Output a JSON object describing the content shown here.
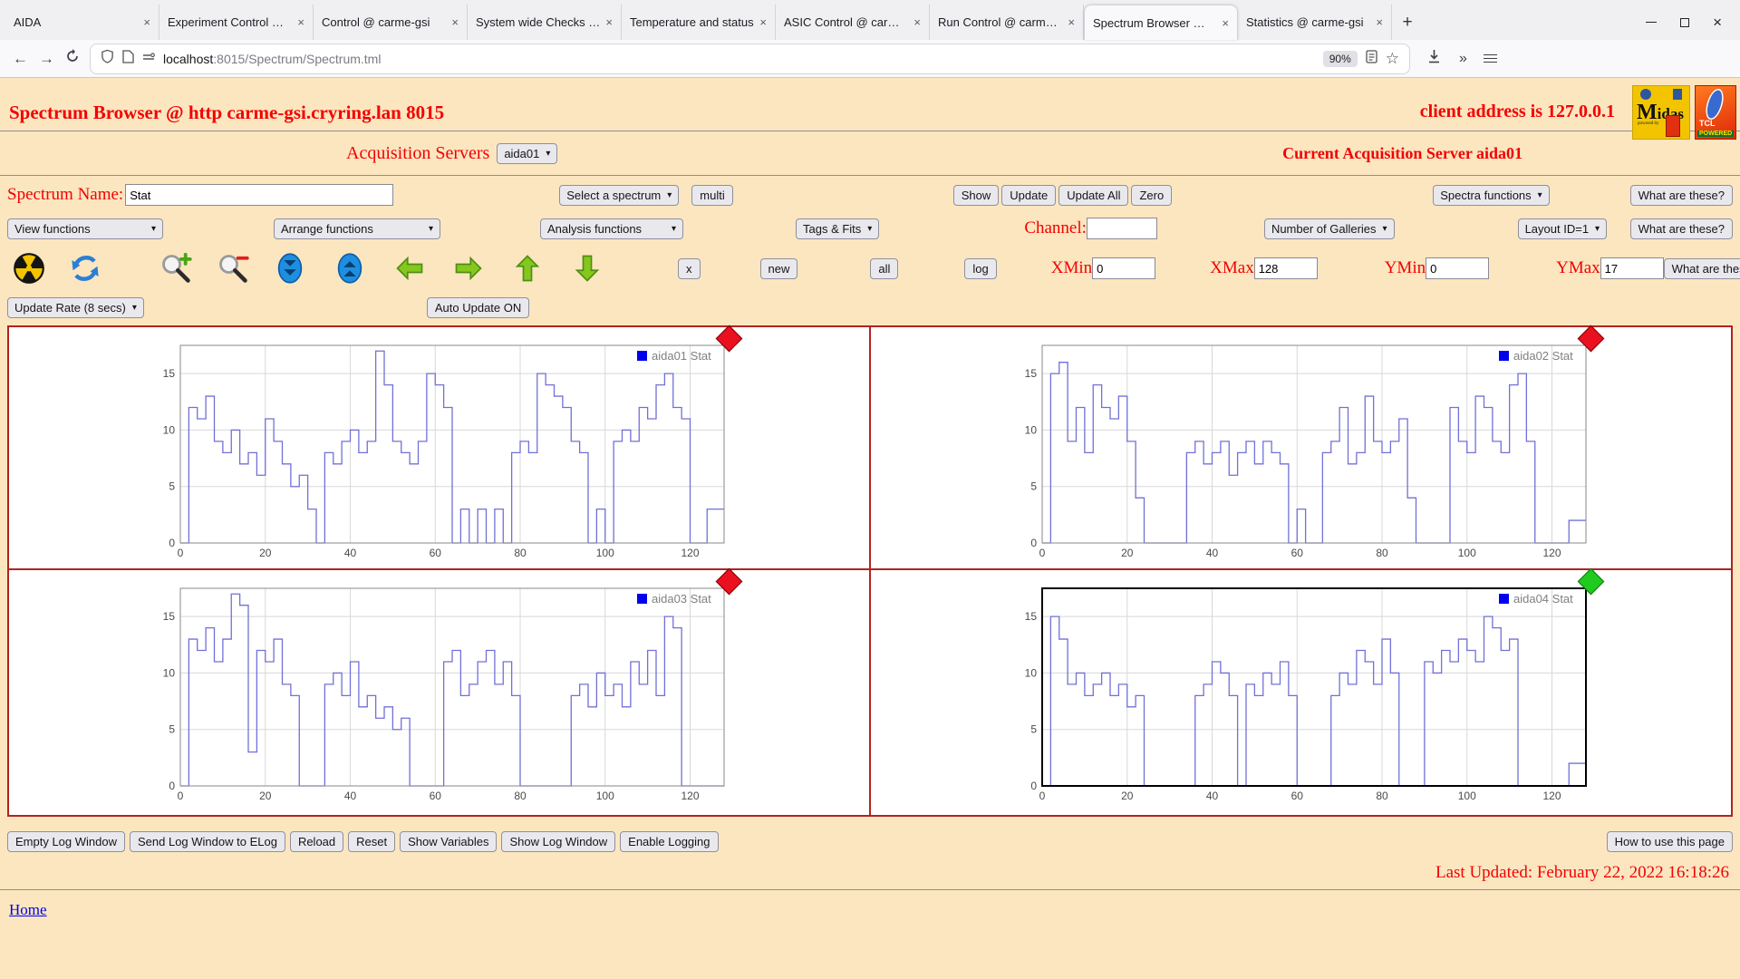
{
  "browser": {
    "tabs": [
      {
        "label": "AIDA",
        "active": false
      },
      {
        "label": "Experiment Control @ ca",
        "active": false
      },
      {
        "label": "Control @ carme-gsi",
        "active": false
      },
      {
        "label": "System wide Checks @ c",
        "active": false
      },
      {
        "label": "Temperature and status",
        "active": false
      },
      {
        "label": "ASIC Control @ carme-g",
        "active": false
      },
      {
        "label": "Run Control @ carme-gs",
        "active": false
      },
      {
        "label": "Spectrum Browser @ ca",
        "active": true
      },
      {
        "label": "Statistics @ carme-gsi",
        "active": false
      }
    ],
    "new_tab": "+",
    "close_glyph": "×",
    "url_host": "localhost",
    "url_path": ":8015/Spectrum/Spectrum.tml",
    "zoom_badge": "90%",
    "back": "←",
    "forward": "→",
    "star": "☆",
    "chevrons": "»"
  },
  "header": {
    "title": "Spectrum Browser @ http carme-gsi.cryring.lan 8015",
    "client": "client address is 127.0.0.1",
    "midas_logo_text": "Midas",
    "midas_powered": "powered by",
    "tcl_text": "TCL",
    "tcl_powered": "POWERED"
  },
  "acquisition": {
    "label": "Acquisition Servers",
    "selected": "aida01",
    "current": "Current Acquisition Server aida01"
  },
  "controls": {
    "spectrum_name_label": "Spectrum Name:",
    "spectrum_name_value": "Stat",
    "select_spectrum": "Select a spectrum",
    "multi": "multi",
    "show": "Show",
    "update": "Update",
    "update_all": "Update All",
    "zero": "Zero",
    "spectra_functions": "Spectra functions",
    "what_are_these": "What are these?",
    "view_functions": "View functions",
    "arrange_functions": "Arrange functions",
    "analysis_functions": "Analysis functions",
    "tags_fits": "Tags & Fits",
    "channel_label": "Channel:",
    "channel_value": "",
    "number_of_galleries": "Number of Galleries",
    "layout_id": "Layout ID=1",
    "x_button": "x",
    "new_button": "new",
    "all_button": "all",
    "log_button": "log",
    "xmin_label": "XMin",
    "xmin_value": "0",
    "xmax_label": "XMax",
    "xmax_value": "128",
    "ymin_label": "YMin",
    "ymin_value": "0",
    "ymax_label": "YMax",
    "ymax_value": "17",
    "update_rate": "Update Rate (8 secs)",
    "auto_update": "Auto Update ON",
    "icons": [
      "radiation-icon",
      "refresh-icon",
      "zoom-in-icon",
      "zoom-out-icon",
      "scroll-down-icon",
      "scroll-up-icon",
      "arrow-left-icon",
      "arrow-right-icon",
      "arrow-up-icon",
      "arrow-down-icon"
    ]
  },
  "footer": {
    "buttons": [
      "Empty Log Window",
      "Send Log Window to ELog",
      "Reload",
      "Reset",
      "Show Variables",
      "Show Log Window",
      "Enable Logging"
    ],
    "how_to": "How to use this page",
    "last_updated": "Last Updated: February 22, 2022 16:18:26",
    "home": "Home"
  },
  "chart_data": {
    "type": "line",
    "style": "step-histogram",
    "xlim": [
      0,
      128
    ],
    "ylim": [
      0,
      17.5
    ],
    "x_ticks": [
      0,
      20,
      40,
      60,
      80,
      100,
      120
    ],
    "y_ticks": [
      0,
      5,
      10,
      15
    ],
    "bin_width": 2,
    "grid": true,
    "legend_position": "top-right",
    "line_color": "#7070d8",
    "legend_square_color": "#0000ee",
    "charts": [
      {
        "legend": "aida01 Stat",
        "marker": "red",
        "selected": false,
        "values": [
          0,
          12,
          11,
          13,
          9,
          8,
          10,
          7,
          8,
          6,
          11,
          9,
          7,
          5,
          6,
          3,
          0,
          8,
          7,
          9,
          10,
          8,
          9,
          17,
          14,
          9,
          8,
          7,
          9,
          15,
          14,
          12,
          0,
          3,
          0,
          3,
          0,
          3,
          0,
          8,
          9,
          8,
          15,
          14,
          13,
          12,
          9,
          8,
          0,
          3,
          0,
          9,
          10,
          9,
          12,
          11,
          14,
          15,
          12,
          11,
          0,
          0,
          3,
          3
        ]
      },
      {
        "legend": "aida02 Stat",
        "marker": "red",
        "selected": false,
        "values": [
          0,
          15,
          16,
          9,
          12,
          8,
          14,
          12,
          11,
          13,
          9,
          4,
          0,
          0,
          0,
          0,
          0,
          8,
          9,
          7,
          8,
          9,
          6,
          8,
          9,
          7,
          9,
          8,
          7,
          0,
          3,
          0,
          0,
          8,
          9,
          12,
          7,
          8,
          13,
          9,
          8,
          9,
          11,
          4,
          0,
          0,
          0,
          0,
          12,
          9,
          8,
          13,
          12,
          9,
          8,
          14,
          15,
          9,
          0,
          0,
          0,
          0,
          2,
          2
        ]
      },
      {
        "legend": "aida03 Stat",
        "marker": "red",
        "selected": false,
        "values": [
          0,
          13,
          12,
          14,
          11,
          13,
          17,
          16,
          3,
          12,
          11,
          13,
          9,
          8,
          0,
          0,
          0,
          9,
          10,
          8,
          11,
          7,
          8,
          6,
          7,
          5,
          6,
          0,
          0,
          0,
          0,
          11,
          12,
          8,
          9,
          11,
          12,
          9,
          11,
          8,
          0,
          0,
          0,
          0,
          0,
          0,
          8,
          9,
          7,
          10,
          8,
          9,
          7,
          11,
          9,
          12,
          8,
          15,
          14,
          0,
          0,
          0,
          0,
          0
        ]
      },
      {
        "legend": "aida04 Stat",
        "marker": "green",
        "selected": true,
        "values": [
          0,
          15,
          13,
          9,
          10,
          8,
          9,
          10,
          8,
          9,
          7,
          8,
          0,
          0,
          0,
          0,
          0,
          0,
          8,
          9,
          11,
          10,
          8,
          0,
          9,
          8,
          10,
          9,
          11,
          8,
          0,
          0,
          0,
          0,
          8,
          10,
          9,
          12,
          11,
          9,
          13,
          10,
          0,
          0,
          0,
          11,
          10,
          12,
          11,
          13,
          12,
          11,
          15,
          14,
          12,
          13,
          0,
          0,
          0,
          0,
          0,
          0,
          2,
          2
        ]
      }
    ]
  }
}
